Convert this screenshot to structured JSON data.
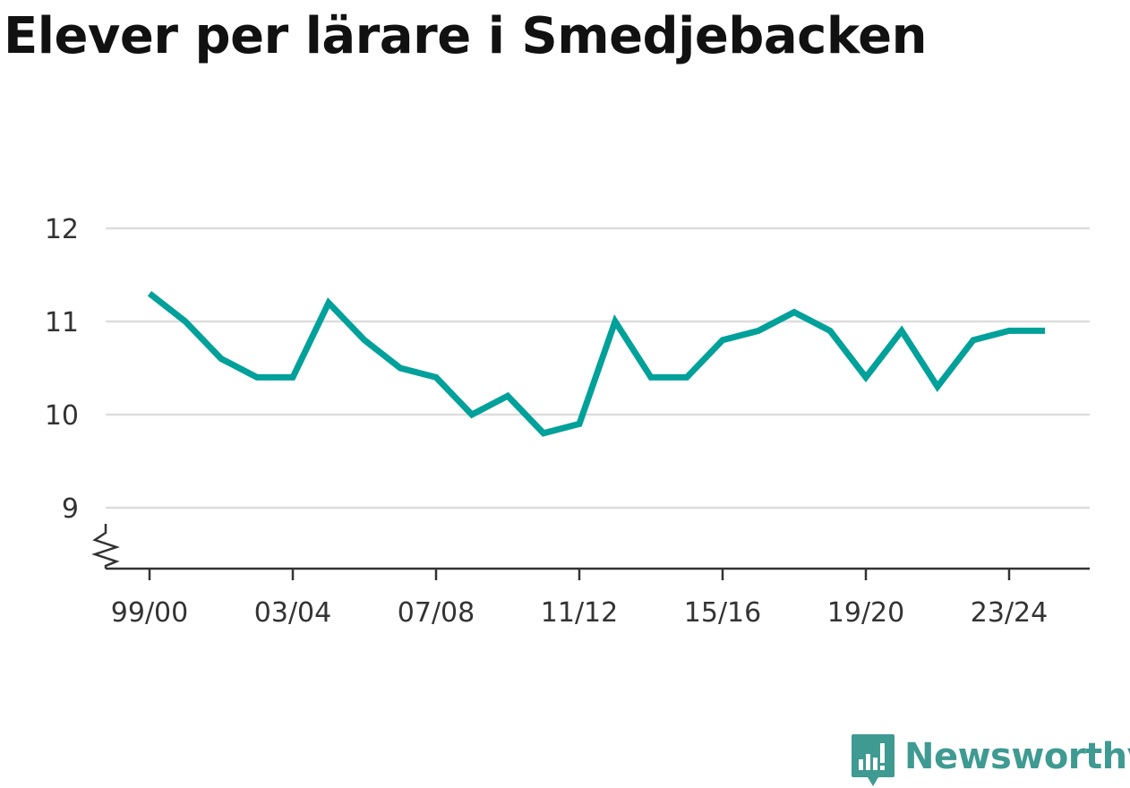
{
  "title": "Elever per lärare i Smedjebacken",
  "brand": {
    "name": "Newsworthy",
    "color": "#3f9a92"
  },
  "chart_data": {
    "type": "line",
    "title": "Elever per lärare i Smedjebacken",
    "xlabel": "",
    "ylabel": "",
    "x": [
      "99/00",
      "00/01",
      "01/02",
      "02/03",
      "03/04",
      "04/05",
      "05/06",
      "06/07",
      "07/08",
      "08/09",
      "09/10",
      "10/11",
      "11/12",
      "12/13",
      "13/14",
      "14/15",
      "15/16",
      "16/17",
      "17/18",
      "18/19",
      "19/20",
      "20/21",
      "21/22",
      "22/23",
      "23/24",
      "24/25"
    ],
    "x_ticks": [
      "99/00",
      "03/04",
      "07/08",
      "11/12",
      "15/16",
      "19/20",
      "23/24"
    ],
    "y_ticks": [
      9,
      10,
      11,
      12
    ],
    "ylim": [
      8.35,
      12
    ],
    "y_axis_break": true,
    "grid": true,
    "series": [
      {
        "color": "#00a19a",
        "values": [
          11.3,
          11.0,
          10.6,
          10.4,
          10.4,
          11.2,
          10.8,
          10.5,
          10.4,
          10.0,
          10.2,
          9.8,
          9.9,
          11.0,
          10.4,
          10.4,
          10.8,
          10.9,
          11.1,
          10.9,
          10.4,
          10.9,
          10.3,
          10.8,
          10.9,
          10.9
        ]
      }
    ]
  }
}
